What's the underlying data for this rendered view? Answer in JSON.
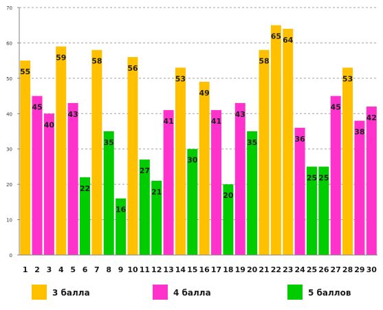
{
  "chart_data": {
    "type": "bar",
    "categories": [
      "1",
      "2",
      "3",
      "4",
      "5",
      "6",
      "7",
      "8",
      "9",
      "10",
      "11",
      "12",
      "13",
      "14",
      "15",
      "16",
      "17",
      "18",
      "19",
      "20",
      "21",
      "22",
      "23",
      "24",
      "25",
      "26",
      "27",
      "28",
      "29",
      "30"
    ],
    "values": [
      55,
      45,
      40,
      59,
      43,
      22,
      58,
      35,
      16,
      56,
      27,
      21,
      41,
      53,
      30,
      49,
      41,
      20,
      43,
      35,
      58,
      65,
      64,
      36,
      25,
      25,
      45,
      53,
      38,
      42
    ],
    "groups": [
      0,
      1,
      1,
      0,
      1,
      2,
      0,
      2,
      2,
      0,
      2,
      2,
      1,
      0,
      2,
      0,
      1,
      2,
      1,
      2,
      0,
      0,
      0,
      1,
      2,
      2,
      1,
      0,
      1,
      1
    ],
    "series": [
      {
        "name": "3 балла",
        "color": "#FFC000"
      },
      {
        "name": "4 балла",
        "color": "#FF33CC"
      },
      {
        "name": "5 баллов",
        "color": "#00CC00"
      }
    ],
    "ylim": [
      0,
      70
    ],
    "yticks": [
      "0",
      "10",
      "20",
      "30",
      "40",
      "50",
      "60",
      "70"
    ],
    "grid": true,
    "legend_position": "bottom",
    "title": "",
    "xlabel": "",
    "ylabel": ""
  }
}
